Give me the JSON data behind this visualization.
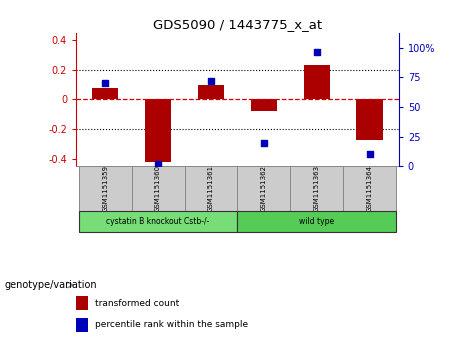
{
  "title": "GDS5090 / 1443775_x_at",
  "samples": [
    "GSM1151359",
    "GSM1151360",
    "GSM1151361",
    "GSM1151362",
    "GSM1151363",
    "GSM1151364"
  ],
  "bar_values": [
    0.08,
    -0.42,
    0.1,
    -0.08,
    0.23,
    -0.27
  ],
  "scatter_values": [
    70,
    2,
    72,
    20,
    96,
    10
  ],
  "groups": [
    {
      "label": "cystatin B knockout Cstb-/-",
      "start": 0,
      "end": 3,
      "color": "#77DD77"
    },
    {
      "label": "wild type",
      "start": 3,
      "end": 6,
      "color": "#55CC55"
    }
  ],
  "bar_color": "#AA0000",
  "scatter_color": "#0000BB",
  "ylim_left": [
    -0.45,
    0.45
  ],
  "ylim_right": [
    0,
    112.5
  ],
  "yticks_left": [
    -0.4,
    -0.2,
    0.0,
    0.2,
    0.4
  ],
  "ytick_labels_left": [
    "-0.4",
    "-0.2",
    "0",
    "0.2",
    "0.4"
  ],
  "yticks_right": [
    0,
    25,
    50,
    75,
    100
  ],
  "ytick_labels_right": [
    "0",
    "25",
    "50",
    "75",
    "100%"
  ],
  "hline_y": 0.0,
  "dotted_lines": [
    -0.2,
    0.2
  ],
  "legend_items": [
    {
      "label": "transformed count",
      "color": "#AA0000"
    },
    {
      "label": "percentile rank within the sample",
      "color": "#0000BB"
    }
  ],
  "genotype_label": "genotype/variation",
  "bar_width": 0.5,
  "background_color": "#ffffff",
  "xlim": [
    -0.55,
    5.55
  ]
}
